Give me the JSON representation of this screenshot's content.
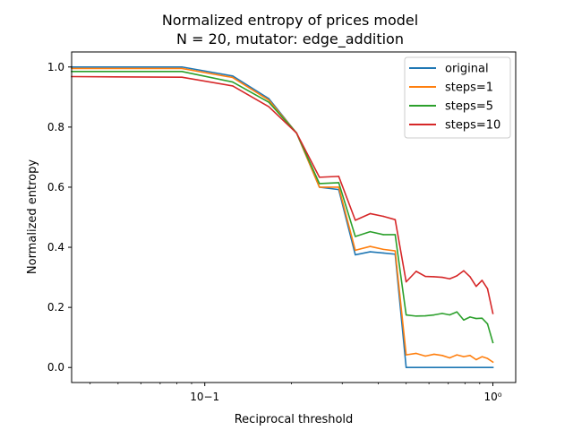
{
  "chart_data": {
    "type": "line",
    "title": "Normalized entropy of prices model",
    "subtitle": "N = 20, mutator: edge_addition",
    "xlabel": "Reciprocal threshold",
    "ylabel": "Normalized entropy",
    "xscale": "log",
    "xlim": [
      0.0345,
      1.2
    ],
    "ylim": [
      -0.05,
      1.05
    ],
    "x_ticks": [
      {
        "value": 0.1,
        "label": "10−1"
      },
      {
        "value": 1.0,
        "label": "10⁰"
      }
    ],
    "y_ticks": [
      0.0,
      0.2,
      0.4,
      0.6,
      0.8,
      1.0
    ],
    "y_tick_labels": [
      "0.0",
      "0.2",
      "0.4",
      "0.6",
      "0.8",
      "1.0"
    ],
    "grid": false,
    "legend_position": "top-right",
    "x": [
      0.0345,
      0.0833,
      0.125,
      0.1667,
      0.2083,
      0.25,
      0.2917,
      0.333,
      0.375,
      0.4167,
      0.458,
      0.5,
      0.5417,
      0.583,
      0.625,
      0.667,
      0.708,
      0.75,
      0.792,
      0.833,
      0.875,
      0.917,
      0.958,
      1.0
    ],
    "series": [
      {
        "name": "original",
        "color": "#1f77b4",
        "values": [
          1.0,
          1.0,
          0.97,
          0.895,
          0.78,
          0.6,
          0.592,
          0.375,
          0.385,
          0.381,
          0.377,
          0.0,
          0.0,
          0.0,
          0.0,
          0.0,
          0.0,
          0.0,
          0.0,
          0.0,
          0.0,
          0.0,
          0.0,
          0.0
        ]
      },
      {
        "name": "steps=1",
        "color": "#ff7f0e",
        "values": [
          0.995,
          0.995,
          0.965,
          0.89,
          0.78,
          0.6,
          0.6,
          0.39,
          0.403,
          0.393,
          0.388,
          0.042,
          0.047,
          0.038,
          0.044,
          0.04,
          0.032,
          0.042,
          0.036,
          0.04,
          0.026,
          0.036,
          0.03,
          0.018
        ]
      },
      {
        "name": "steps=5",
        "color": "#2ca02c",
        "values": [
          0.985,
          0.985,
          0.95,
          0.883,
          0.78,
          0.612,
          0.615,
          0.436,
          0.452,
          0.442,
          0.442,
          0.175,
          0.171,
          0.172,
          0.175,
          0.18,
          0.175,
          0.185,
          0.158,
          0.168,
          0.163,
          0.164,
          0.145,
          0.083
        ]
      },
      {
        "name": "steps=10",
        "color": "#d62728",
        "values": [
          0.968,
          0.966,
          0.937,
          0.868,
          0.78,
          0.633,
          0.636,
          0.49,
          0.512,
          0.503,
          0.492,
          0.285,
          0.32,
          0.303,
          0.302,
          0.3,
          0.295,
          0.305,
          0.322,
          0.302,
          0.27,
          0.29,
          0.262,
          0.18
        ]
      }
    ]
  }
}
